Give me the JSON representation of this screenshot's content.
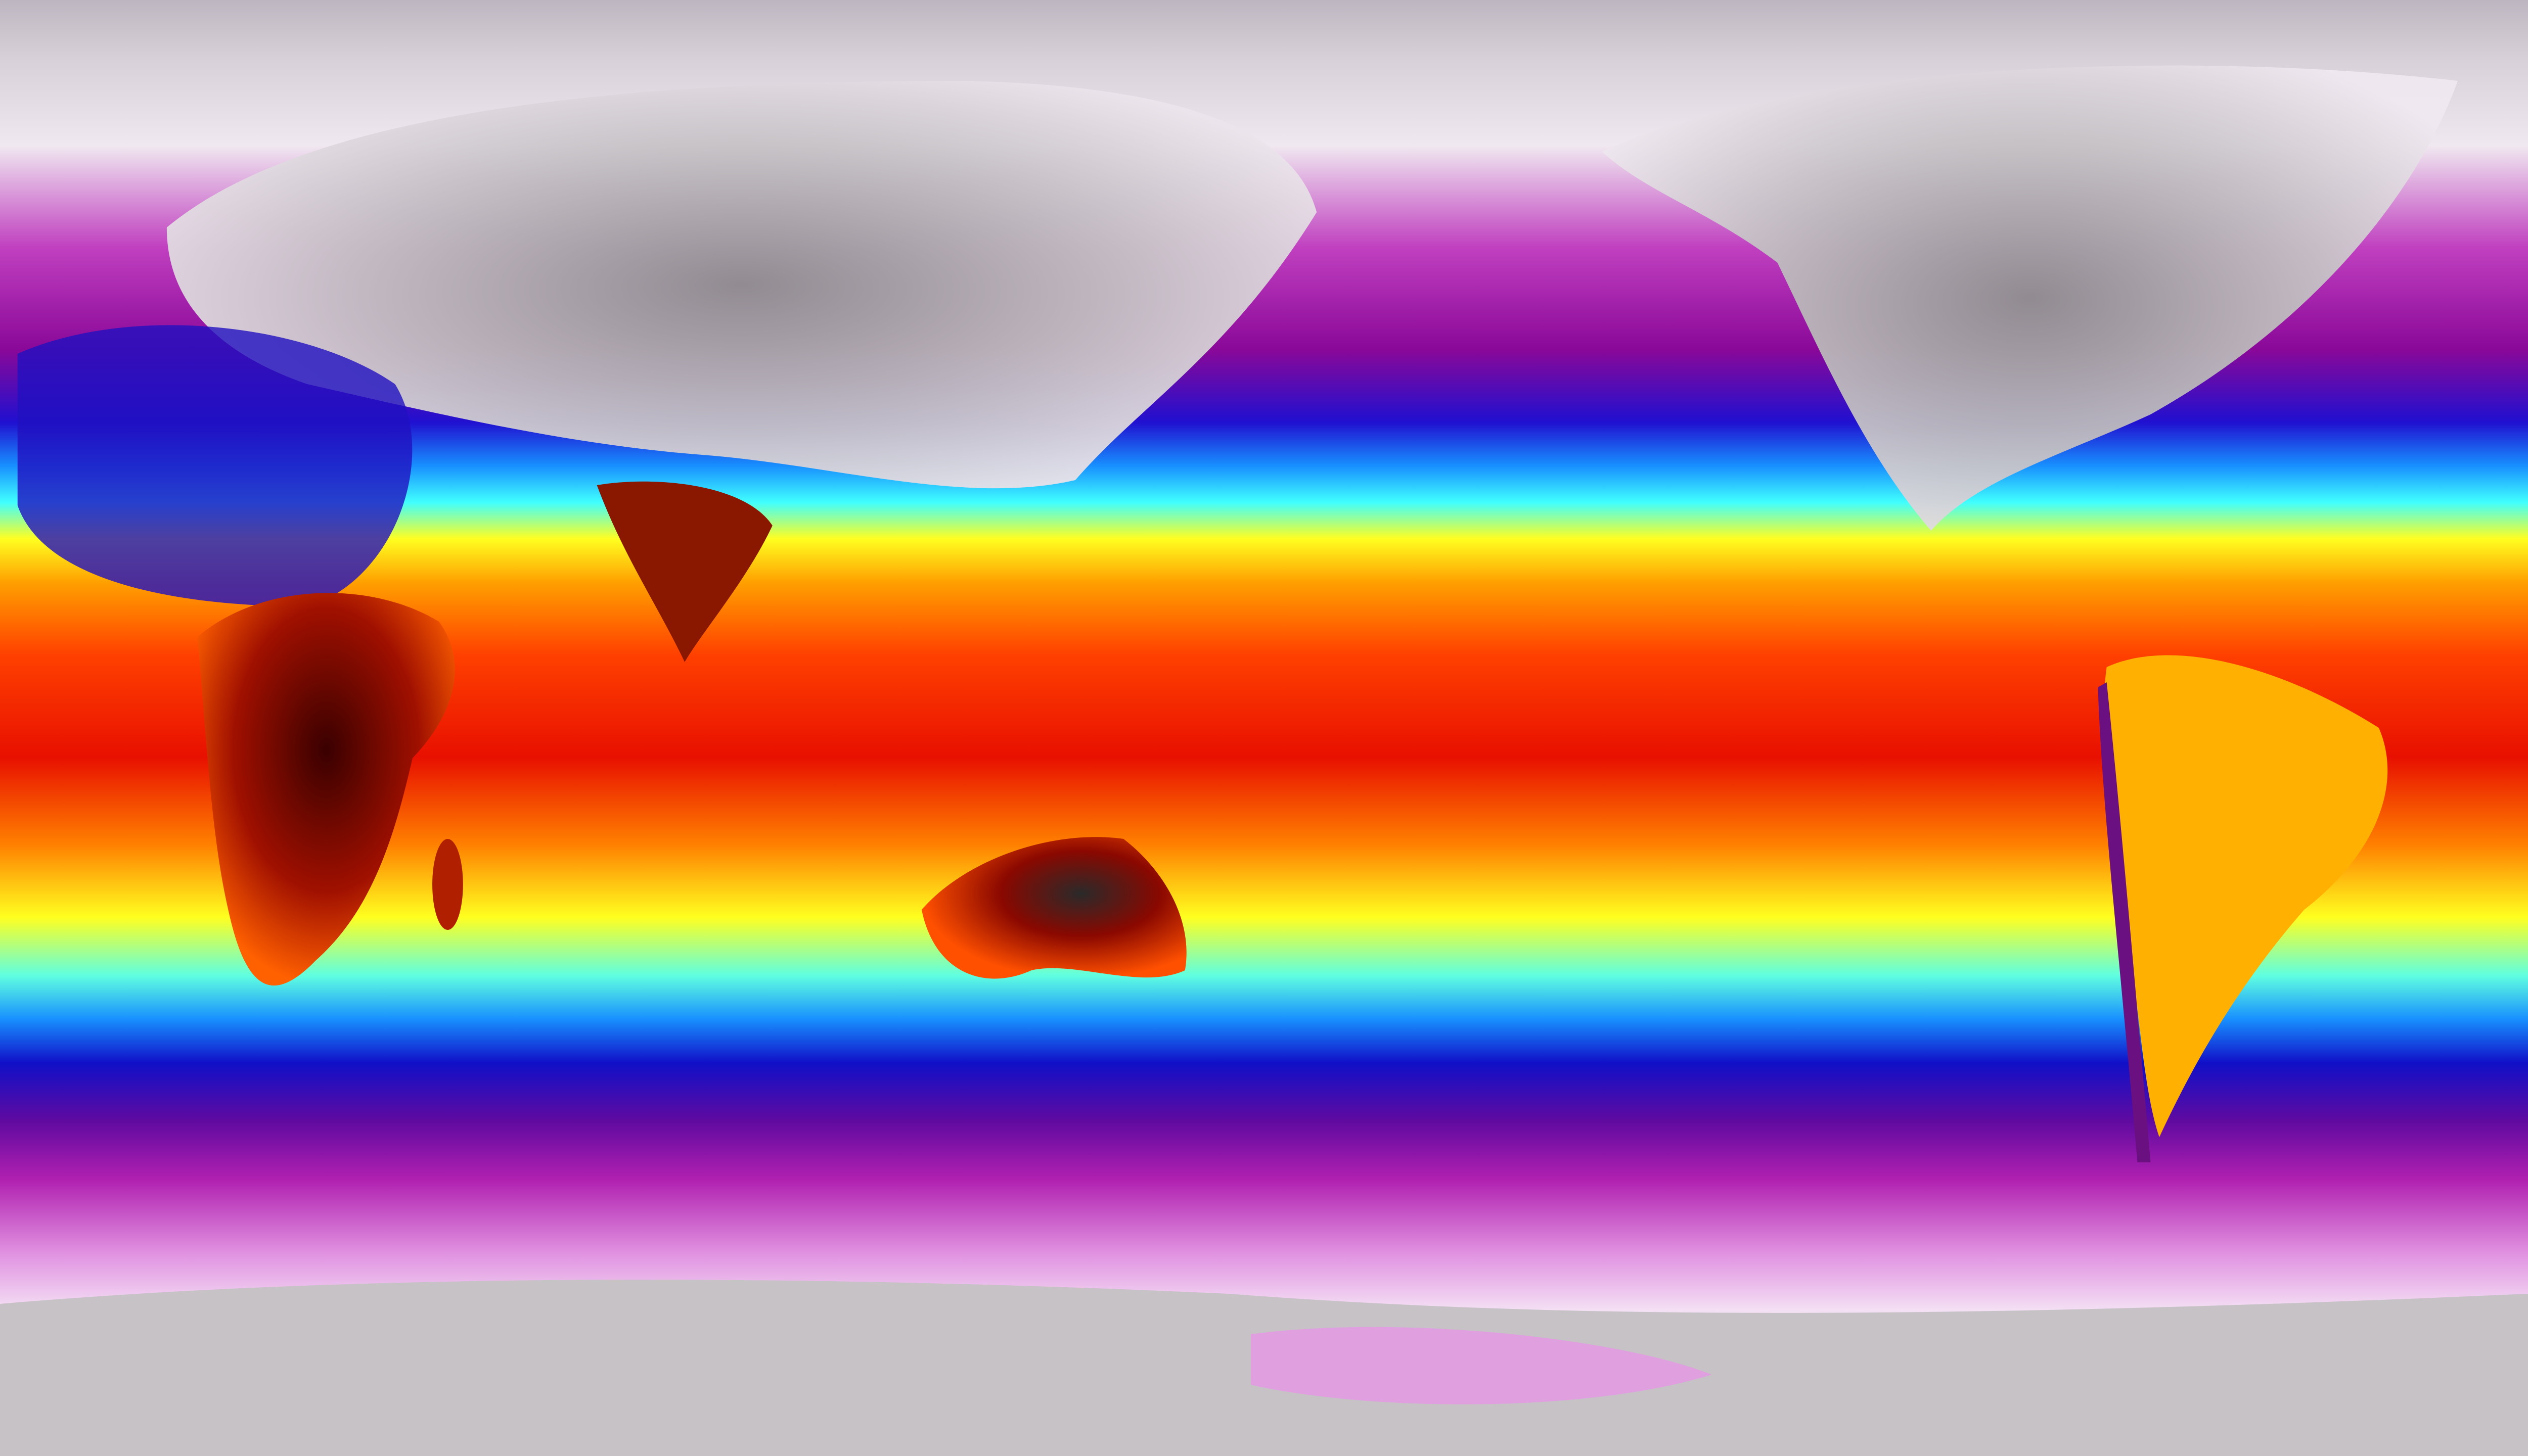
{
  "map": {
    "projection": "equirectangular",
    "colorscale": [
      "#bdb6c0",
      "#f4eef4",
      "#e27ee2",
      "#9c089c",
      "#5a0aa0",
      "#1010d8",
      "#1890ff",
      "#40ffff",
      "#ffff20",
      "#ffa000",
      "#ff3000",
      "#d80800",
      "#5a0000",
      "#2a2a2a"
    ],
    "land_colors": {
      "northern_land": "#c8c2c8",
      "africa": "#8a0c00",
      "australia": "#b01000",
      "south_america": "#ffb000",
      "antarctica": "#c6c2c6"
    }
  }
}
